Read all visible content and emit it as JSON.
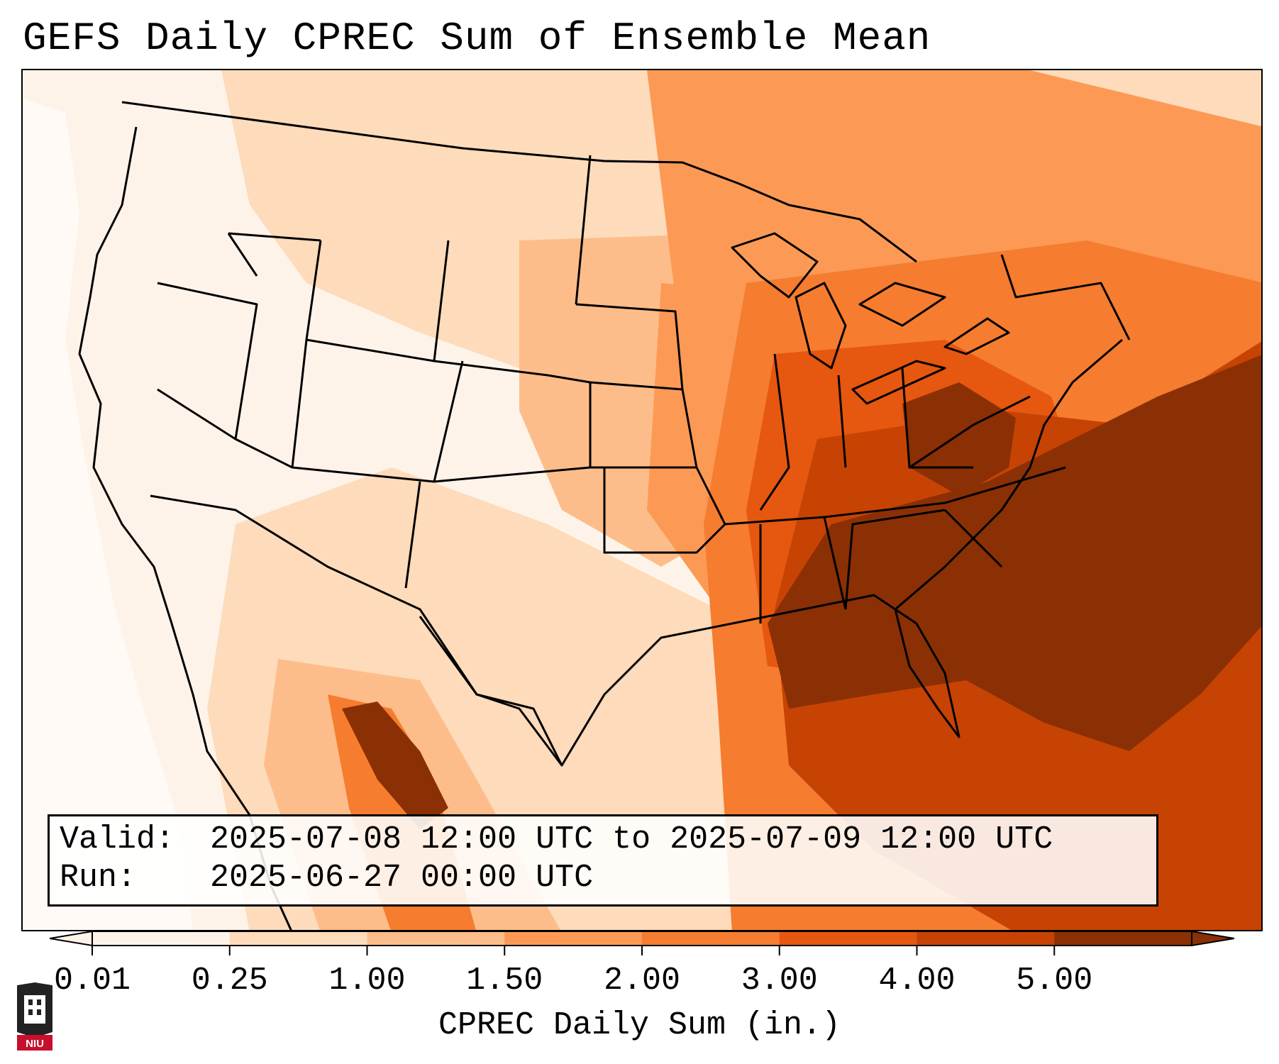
{
  "title": "GEFS Daily CPREC Sum of Ensemble Mean",
  "info": {
    "valid_label": "Valid:",
    "valid_value": "2025-07-08 12:00 UTC to 2025-07-09 12:00 UTC",
    "run_label": "Run:",
    "run_value": "2025-06-27 00:00 UTC"
  },
  "colorbar": {
    "label": "CPREC Daily Sum (in.)",
    "ticks": [
      "0.01",
      "0.25",
      "1.00",
      "1.50",
      "2.00",
      "3.00",
      "4.00",
      "5.00"
    ],
    "colors": [
      "#fef3e9",
      "#fddbbb",
      "#fdbd8a",
      "#fc9a55",
      "#f67c2f",
      "#e6570f",
      "#c74304",
      "#8a3004"
    ],
    "extend": "both"
  },
  "logo": {
    "text": "NIU",
    "colors": {
      "red": "#c8102e",
      "dark": "#222222"
    }
  },
  "map": {
    "fill_colors": {
      "trace": "#fef3e9",
      "light": "#fddbbb",
      "light_mid": "#fdbd8a",
      "mid": "#fc9a55",
      "mid_high": "#f67c2f",
      "high": "#e6570f",
      "very_high": "#c74304",
      "max": "#8a3004",
      "none": "#ffffff"
    }
  }
}
